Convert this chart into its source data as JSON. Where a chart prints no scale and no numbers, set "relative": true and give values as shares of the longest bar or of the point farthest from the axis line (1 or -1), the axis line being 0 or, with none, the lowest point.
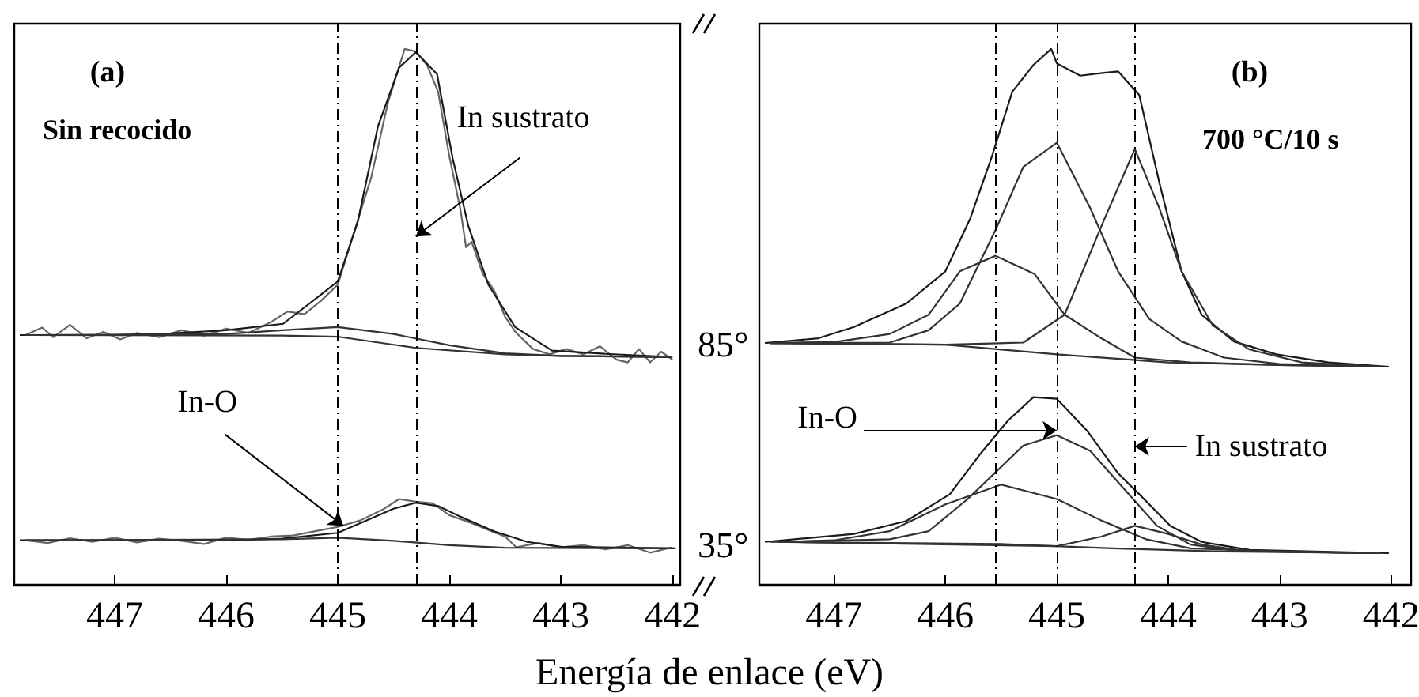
{
  "chart_data": [
    {
      "type": "line",
      "relative": true,
      "marker": "none",
      "xlabel": "Energía de enlace (eV)",
      "xlim": [
        447.9,
        441.93
      ],
      "xticks": [
        447,
        446,
        445,
        444,
        443,
        442
      ],
      "annotations": [
        "(a)",
        "Sin recocido",
        {
          "text": "In sustrato",
          "x": 444.3,
          "y": 0.65
        },
        {
          "text": "In-O",
          "x": 444.95,
          "y": 0.11
        }
      ],
      "ref_lines": [
        {
          "axis": "x",
          "value": 445.0,
          "color": "#000000",
          "line_style": "dashed"
        },
        {
          "axis": "x",
          "value": 444.3,
          "color": "#000000",
          "line_style": "dashed"
        }
      ],
      "series": [
        {
          "color": "#666666",
          "x": [
            447.8,
            447.65,
            447.55,
            447.4,
            447.25,
            447.1,
            446.95,
            446.8,
            446.6,
            446.4,
            446.2,
            446.0,
            445.8,
            445.6,
            445.45,
            445.3,
            445.15,
            445.0,
            444.85,
            444.7,
            444.55,
            444.4,
            444.3,
            444.2,
            444.1,
            444.0,
            443.9,
            443.85,
            443.8,
            443.7,
            443.6,
            443.5,
            443.4,
            443.25,
            443.1,
            442.95,
            442.8,
            442.65,
            442.5,
            442.4,
            442.3,
            442.2,
            442.1,
            442.0
          ],
          "values": [
            0.466,
            0.48,
            0.462,
            0.485,
            0.46,
            0.472,
            0.458,
            0.47,
            0.462,
            0.475,
            0.465,
            0.478,
            0.47,
            0.49,
            0.51,
            0.505,
            0.53,
            0.56,
            0.66,
            0.76,
            0.9,
            1.0,
            0.995,
            0.97,
            0.92,
            0.8,
            0.7,
            0.63,
            0.64,
            0.58,
            0.55,
            0.5,
            0.47,
            0.44,
            0.43,
            0.44,
            0.43,
            0.445,
            0.42,
            0.415,
            0.44,
            0.415,
            0.435,
            0.42
          ]
        },
        {
          "color": "#1a1a1a",
          "x": [
            447.85,
            447.0,
            446.5,
            446.0,
            445.49,
            445.16,
            445.0,
            444.82,
            444.64,
            444.45,
            444.3,
            444.11,
            443.97,
            443.83,
            443.65,
            443.41,
            443.08,
            442.6,
            442.0
          ],
          "values": [
            0.466,
            0.466,
            0.469,
            0.475,
            0.487,
            0.54,
            0.566,
            0.678,
            0.855,
            0.965,
            0.994,
            0.953,
            0.796,
            0.67,
            0.56,
            0.481,
            0.437,
            0.431,
            0.425
          ]
        },
        {
          "color": "#333333",
          "x": [
            447.8,
            446.0,
            445.5,
            445.0,
            444.5,
            444.0,
            443.5,
            443.0,
            442.0
          ],
          "values": [
            0.466,
            0.468,
            0.475,
            0.481,
            0.468,
            0.447,
            0.432,
            0.427,
            0.425
          ]
        },
        {
          "color": "#333333",
          "x": [
            447.8,
            445.5,
            445.0,
            444.3,
            443.5,
            443.0,
            442.0
          ],
          "values": [
            0.466,
            0.465,
            0.463,
            0.442,
            0.43,
            0.427,
            0.425
          ]
        },
        {
          "color": "#666666",
          "x": [
            447.8,
            447.6,
            447.4,
            447.2,
            447.0,
            446.8,
            446.6,
            446.4,
            446.2,
            446.0,
            445.8,
            445.6,
            445.4,
            445.2,
            445.0,
            444.8,
            444.6,
            444.45,
            444.3,
            444.15,
            444.0,
            443.8,
            443.6,
            443.5,
            443.4,
            443.2,
            443.0,
            442.8,
            442.6,
            442.4,
            442.2,
            442.0
          ],
          "values": [
            0.083,
            0.078,
            0.087,
            0.08,
            0.088,
            0.079,
            0.086,
            0.082,
            0.076,
            0.088,
            0.084,
            0.09,
            0.092,
            0.1,
            0.108,
            0.12,
            0.14,
            0.16,
            0.155,
            0.152,
            0.13,
            0.115,
            0.098,
            0.09,
            0.07,
            0.078,
            0.07,
            0.074,
            0.066,
            0.074,
            0.06,
            0.07
          ]
        },
        {
          "color": "#1a1a1a",
          "x": [
            447.85,
            446.0,
            445.5,
            445.0,
            444.7,
            444.5,
            444.3,
            444.1,
            443.9,
            443.6,
            443.3,
            443.0,
            441.97
          ],
          "values": [
            0.083,
            0.083,
            0.086,
            0.097,
            0.124,
            0.142,
            0.153,
            0.147,
            0.127,
            0.1,
            0.08,
            0.071,
            0.068
          ]
        },
        {
          "color": "#333333",
          "x": [
            447.8,
            445.5,
            445.0,
            444.5,
            444.0,
            443.5,
            442.0
          ],
          "values": [
            0.083,
            0.085,
            0.088,
            0.082,
            0.074,
            0.069,
            0.068
          ]
        }
      ]
    },
    {
      "type": "line",
      "relative": true,
      "marker": "none",
      "xlim": [
        447.67,
        441.82
      ],
      "xticks": [
        447,
        446,
        445,
        444,
        443,
        442
      ],
      "annotations": [
        "(b)",
        "700 °C/10 s",
        "85°",
        "35°",
        {
          "text": "In-O",
          "x": 445.0,
          "y": 0.288
        },
        {
          "text": "In sustrato",
          "x": 444.3,
          "y": 0.258
        }
      ],
      "ref_lines": [
        {
          "axis": "x",
          "value": 445.55,
          "color": "#000000",
          "line_style": "dashed"
        },
        {
          "axis": "x",
          "value": 445.0,
          "color": "#000000",
          "line_style": "dashed"
        },
        {
          "axis": "x",
          "value": 444.3,
          "color": "#000000",
          "line_style": "dashed"
        }
      ],
      "series": [
        {
          "color": "#1a1a1a",
          "x": [
            447.62,
            447.14,
            446.82,
            446.35,
            446.0,
            445.78,
            445.58,
            445.4,
            445.21,
            445.05,
            445.0,
            444.79,
            444.59,
            444.45,
            444.26,
            444.08,
            443.88,
            443.7,
            443.41,
            443.03,
            442.56,
            442.02
          ],
          "values": [
            0.451,
            0.46,
            0.481,
            0.525,
            0.585,
            0.682,
            0.801,
            0.92,
            0.97,
            1.0,
            0.973,
            0.95,
            0.955,
            0.958,
            0.914,
            0.751,
            0.585,
            0.504,
            0.454,
            0.43,
            0.415,
            0.407
          ]
        },
        {
          "color": "#333333",
          "x": [
            447.57,
            446.0,
            445.0,
            444.0,
            443.0,
            442.09
          ],
          "values": [
            0.451,
            0.448,
            0.43,
            0.415,
            0.41,
            0.407
          ]
        },
        {
          "color": "#333333",
          "x": [
            447.57,
            447.0,
            446.5,
            446.15,
            445.87,
            445.55,
            445.2,
            444.93,
            444.6,
            444.3,
            443.8,
            443.0,
            442.09
          ],
          "values": [
            0.451,
            0.453,
            0.468,
            0.504,
            0.585,
            0.614,
            0.58,
            0.504,
            0.46,
            0.424,
            0.415,
            0.41,
            0.407
          ]
        },
        {
          "color": "#333333",
          "x": [
            447.57,
            446.5,
            446.15,
            445.87,
            445.55,
            445.3,
            445.0,
            444.7,
            444.45,
            444.17,
            443.88,
            443.5,
            443.0,
            442.09
          ],
          "values": [
            0.451,
            0.452,
            0.475,
            0.525,
            0.662,
            0.78,
            0.825,
            0.703,
            0.585,
            0.496,
            0.454,
            0.424,
            0.412,
            0.407
          ]
        },
        {
          "color": "#333333",
          "x": [
            447.57,
            446.0,
            445.3,
            444.93,
            444.59,
            444.3,
            444.08,
            443.88,
            443.6,
            443.27,
            442.8,
            442.09
          ],
          "values": [
            0.451,
            0.448,
            0.452,
            0.504,
            0.674,
            0.813,
            0.703,
            0.585,
            0.484,
            0.439,
            0.415,
            0.407
          ]
        },
        {
          "color": "#1a1a1a",
          "x": [
            447.62,
            446.82,
            446.35,
            445.96,
            445.68,
            445.44,
            445.21,
            445.0,
            444.73,
            444.45,
            444.26,
            443.98,
            443.7,
            443.27,
            442.02
          ],
          "values": [
            0.08,
            0.095,
            0.119,
            0.169,
            0.246,
            0.306,
            0.35,
            0.347,
            0.288,
            0.208,
            0.169,
            0.11,
            0.08,
            0.065,
            0.059
          ]
        },
        {
          "color": "#333333",
          "x": [
            447.57,
            445.5,
            444.5,
            443.5,
            442.09
          ],
          "values": [
            0.08,
            0.076,
            0.068,
            0.062,
            0.059
          ]
        },
        {
          "color": "#333333",
          "x": [
            447.5,
            447.0,
            446.5,
            446.0,
            445.5,
            445.0,
            444.6,
            444.2,
            443.8,
            443.0,
            442.15
          ],
          "values": [
            0.08,
            0.083,
            0.1,
            0.15,
            0.187,
            0.16,
            0.12,
            0.085,
            0.068,
            0.062,
            0.059
          ]
        },
        {
          "color": "#333333",
          "x": [
            447.45,
            446.5,
            446.15,
            445.8,
            445.55,
            445.3,
            445.0,
            444.7,
            444.4,
            444.1,
            443.8,
            443.4,
            442.2
          ],
          "values": [
            0.08,
            0.085,
            0.1,
            0.16,
            0.21,
            0.26,
            0.279,
            0.25,
            0.18,
            0.11,
            0.075,
            0.064,
            0.059
          ]
        },
        {
          "color": "#333333",
          "x": [
            447.4,
            445.0,
            444.6,
            444.3,
            444.0,
            443.7,
            443.3,
            442.25
          ],
          "values": [
            0.08,
            0.072,
            0.09,
            0.11,
            0.095,
            0.075,
            0.063,
            0.059
          ]
        }
      ]
    }
  ]
}
